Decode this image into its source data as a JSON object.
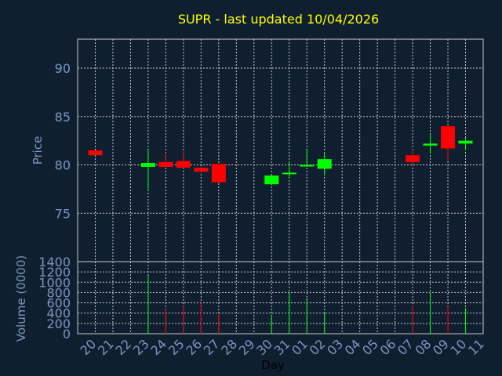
{
  "chart_data": {
    "type": "candlestick",
    "title": "SUPR - last updated 10/04/2026",
    "price_panel": {
      "ylabel": "Price",
      "ylim": [
        70,
        93
      ],
      "yticks": [
        75,
        80,
        85,
        90
      ]
    },
    "volume_panel": {
      "ylabel": "Volume (0000)",
      "ylim": [
        0,
        1400
      ],
      "yticks": [
        0,
        200,
        400,
        600,
        800,
        1000,
        1200,
        1400
      ]
    },
    "xlabel": "Day",
    "x_tick_labels": [
      "20",
      "21",
      "22",
      "23",
      "24",
      "25",
      "26",
      "27",
      "28",
      "29",
      "30",
      "31",
      "01",
      "02",
      "03",
      "04",
      "05",
      "06",
      "07",
      "08",
      "09",
      "10",
      "11"
    ],
    "colors": {
      "up": "#00ff00",
      "down": "#ff0000",
      "title": "#ffff00",
      "axis_text": "#7a96c0",
      "grid": "#c8c8c8",
      "background": "#0f1f30"
    },
    "candles": [
      {
        "day": "20",
        "open": 81.5,
        "high": 81.5,
        "low": 81.0,
        "close": 81.0,
        "volume": 0
      },
      {
        "day": "23",
        "open": 79.8,
        "high": 81.6,
        "low": 77.4,
        "close": 80.2,
        "volume": 1130
      },
      {
        "day": "24",
        "open": 80.3,
        "high": 81.0,
        "low": 79.8,
        "close": 79.8,
        "volume": 500
      },
      {
        "day": "25",
        "open": 80.4,
        "high": 81.4,
        "low": 79.6,
        "close": 79.7,
        "volume": 540
      },
      {
        "day": "26",
        "open": 79.7,
        "high": 79.8,
        "low": 79.2,
        "close": 79.3,
        "volume": 600
      },
      {
        "day": "27",
        "open": 80.1,
        "high": 80.1,
        "low": 78.1,
        "close": 78.2,
        "volume": 380
      },
      {
        "day": "30",
        "open": 78.0,
        "high": 78.9,
        "low": 77.9,
        "close": 78.9,
        "volume": 370
      },
      {
        "day": "31",
        "open": 79.1,
        "high": 80.3,
        "low": 78.7,
        "close": 79.2,
        "volume": 800
      },
      {
        "day": "01",
        "open": 79.9,
        "high": 81.7,
        "low": 79.9,
        "close": 80.0,
        "volume": 690
      },
      {
        "day": "02",
        "open": 79.6,
        "high": 81.2,
        "low": 78.9,
        "close": 80.6,
        "volume": 420
      },
      {
        "day": "07",
        "open": 81.0,
        "high": 81.6,
        "low": 79.9,
        "close": 80.3,
        "volume": 550
      },
      {
        "day": "08",
        "open": 82.0,
        "high": 83.1,
        "low": 81.2,
        "close": 82.2,
        "volume": 810
      },
      {
        "day": "09",
        "open": 84.0,
        "high": 84.1,
        "low": 80.4,
        "close": 81.7,
        "volume": 530
      },
      {
        "day": "10",
        "open": 82.2,
        "high": 82.8,
        "low": 81.5,
        "close": 82.5,
        "volume": 500
      }
    ]
  }
}
